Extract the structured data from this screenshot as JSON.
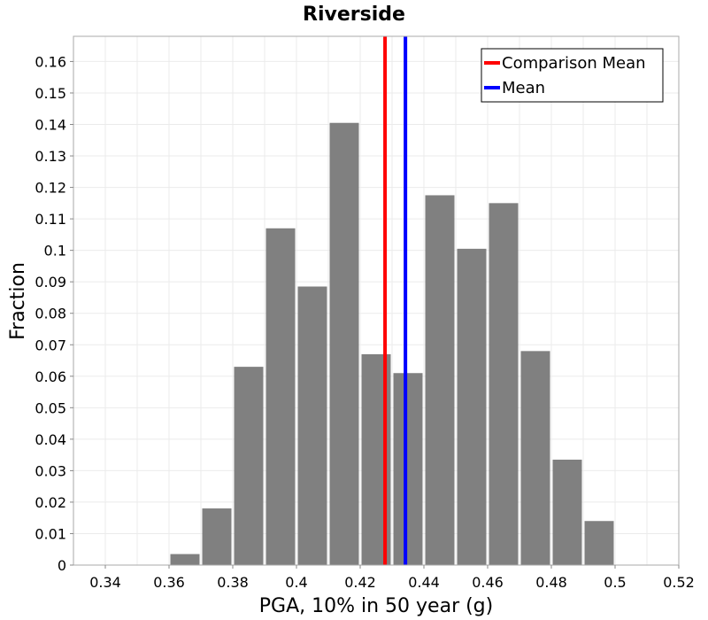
{
  "chart_data": {
    "type": "bar",
    "title": "Riverside",
    "xlabel": "PGA, 10% in 50 year (g)",
    "ylabel": "Fraction",
    "xlim": [
      0.33,
      0.52
    ],
    "ylim": [
      0,
      0.168
    ],
    "bin_width": 0.01,
    "bin_starts": [
      0.36,
      0.37,
      0.38,
      0.39,
      0.4,
      0.41,
      0.42,
      0.43,
      0.44,
      0.45,
      0.46,
      0.47,
      0.48,
      0.49
    ],
    "values": [
      0.0035,
      0.018,
      0.063,
      0.107,
      0.0885,
      0.1405,
      0.067,
      0.061,
      0.1175,
      0.1005,
      0.115,
      0.068,
      0.0335,
      0.014
    ],
    "bar_color": "#808080",
    "x_ticks": [
      "0.34",
      "0.36",
      "0.38",
      "0.4",
      "0.42",
      "0.44",
      "0.46",
      "0.48",
      "0.5",
      "0.52"
    ],
    "x_tick_values": [
      0.34,
      0.36,
      0.38,
      0.4,
      0.42,
      0.44,
      0.46,
      0.48,
      0.5,
      0.52
    ],
    "y_ticks": [
      "0",
      "0.01",
      "0.02",
      "0.03",
      "0.04",
      "0.05",
      "0.06",
      "0.07",
      "0.08",
      "0.09",
      "0.1",
      "0.11",
      "0.12",
      "0.13",
      "0.14",
      "0.15",
      "0.16"
    ],
    "y_tick_values": [
      0,
      0.01,
      0.02,
      0.03,
      0.04,
      0.05,
      0.06,
      0.07,
      0.08,
      0.09,
      0.1,
      0.11,
      0.12,
      0.13,
      0.14,
      0.15,
      0.16
    ],
    "reference_lines": [
      {
        "name": "Comparison Mean",
        "x": 0.4278,
        "color": "#ff0000"
      },
      {
        "name": "Mean",
        "x": 0.4342,
        "color": "#0000ff"
      }
    ],
    "legend": {
      "position": "top-right",
      "entries": [
        {
          "label": "Comparison Mean",
          "color": "#ff0000"
        },
        {
          "label": "Mean",
          "color": "#0000ff"
        }
      ]
    },
    "grid": true
  }
}
